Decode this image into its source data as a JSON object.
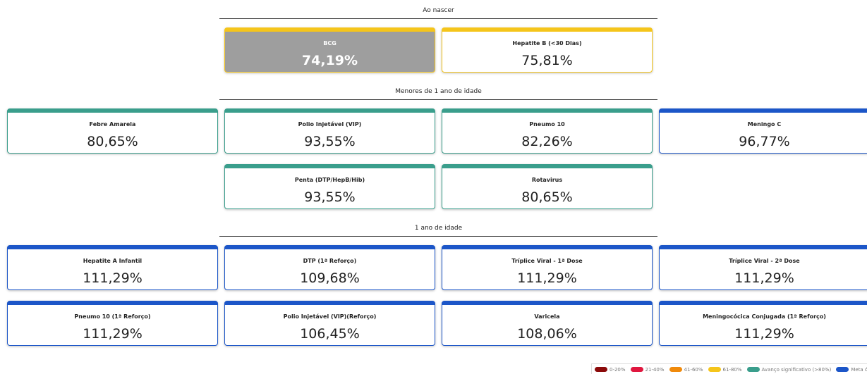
{
  "sections": [
    {
      "title": "Ao nascer",
      "rows": [
        [
          {
            "label": "BCG",
            "value": "74,19%",
            "color": "#f5c51b",
            "fill": "#9e9e9e"
          },
          {
            "label": "Hepatite B (<30 Dias)",
            "value": "75,81%",
            "color": "#f5c51b"
          }
        ]
      ]
    },
    {
      "title": "Menores de 1 ano de idade",
      "rows": [
        [
          {
            "label": "Febre Amarela",
            "value": "80,65%",
            "color": "#3a9e8c"
          },
          {
            "label": "Polio Injetável (VIP)",
            "value": "93,55%",
            "color": "#3a9e8c"
          },
          {
            "label": "Pneumo 10",
            "value": "82,26%",
            "color": "#3a9e8c"
          },
          {
            "label": "Meningo C",
            "value": "96,77%",
            "color": "#1c56c8"
          }
        ],
        [
          {
            "label": "Penta (DTP/HepB/Hib)",
            "value": "93,55%",
            "color": "#3a9e8c"
          },
          {
            "label": "Rotavirus",
            "value": "80,65%",
            "color": "#3a9e8c"
          }
        ]
      ]
    },
    {
      "title": "1 ano de idade",
      "rows": [
        [
          {
            "label": "Hepatite A Infantil",
            "value": "111,29%",
            "color": "#1c56c8"
          },
          {
            "label": "DTP (1ª Reforço)",
            "value": "109,68%",
            "color": "#1c56c8"
          },
          {
            "label": "Tríplice Viral - 1ª Dose",
            "value": "111,29%",
            "color": "#1c56c8"
          },
          {
            "label": "Tríplice Viral - 2ª Dose",
            "value": "111,29%",
            "color": "#1c56c8"
          }
        ],
        [
          {
            "label": "Pneumo 10 (1ª Reforço)",
            "value": "111,29%",
            "color": "#1c56c8"
          },
          {
            "label": "Polio Injetável (VIP)(Reforço)",
            "value": "106,45%",
            "color": "#1c56c8"
          },
          {
            "label": "Varicela",
            "value": "108,06%",
            "color": "#1c56c8"
          },
          {
            "label": "Meningocócica Conjugada (1ª Reforço)",
            "value": "111,29%",
            "color": "#1c56c8"
          }
        ]
      ]
    }
  ],
  "legend": [
    {
      "label": "0-20%",
      "color": "#8b0a0a"
    },
    {
      "label": "21-40%",
      "color": "#e0173f"
    },
    {
      "label": "41-60%",
      "color": "#f08a0b"
    },
    {
      "label": "61-80%",
      "color": "#f5c51b"
    },
    {
      "label": "Avanço significativo (>80%)",
      "color": "#3a9e8c"
    },
    {
      "label": "Meta ótima",
      "color": "#1c56c8"
    }
  ]
}
